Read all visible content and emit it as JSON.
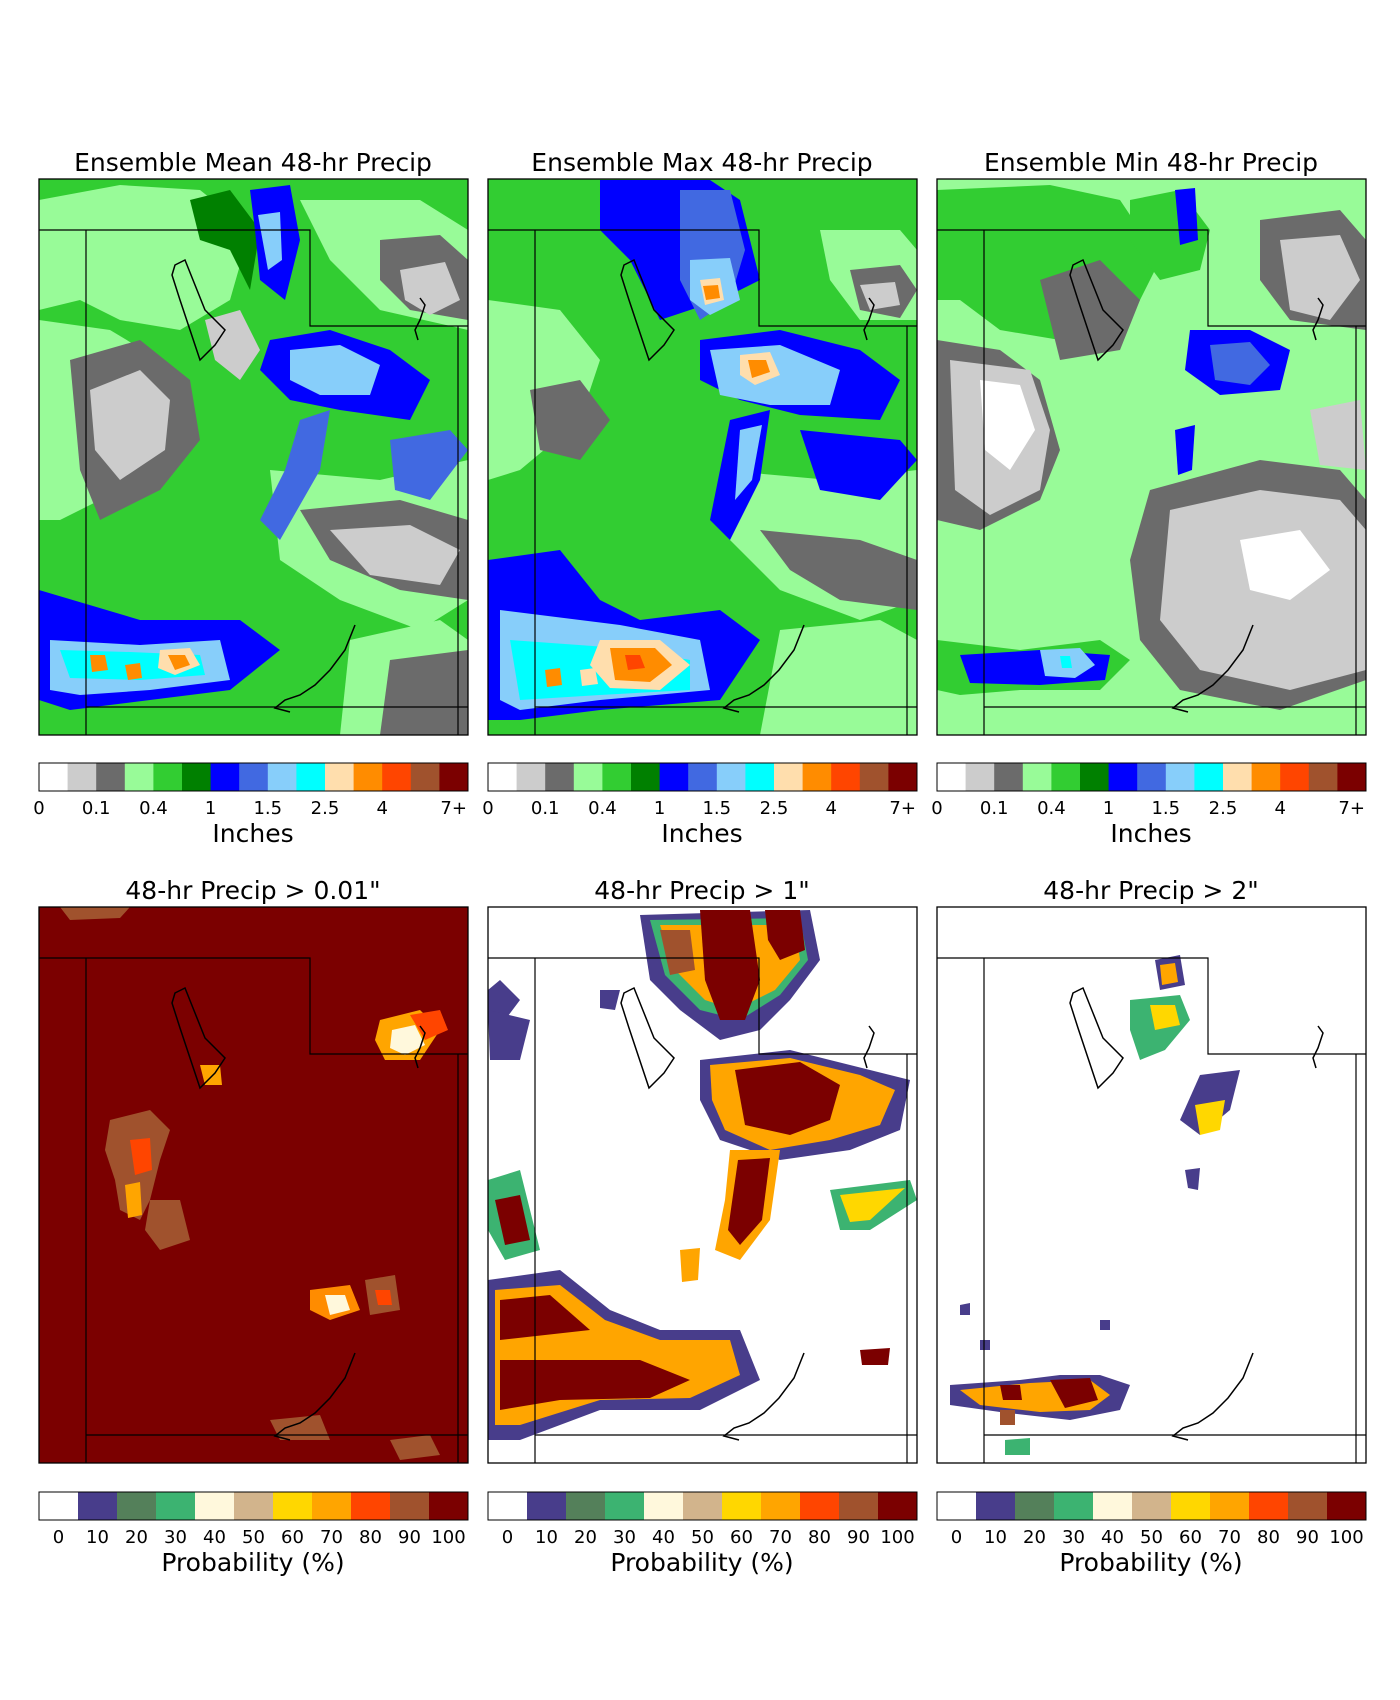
{
  "figure_panels": [
    {
      "id": "mean",
      "title": "Ensemble Mean 48-hr Precip",
      "kind": "precip",
      "field_summary": "Widespread light to moderate precipitation; heaviest band (2.5–4 in) across southwest; blue maxima over north-central mountains"
    },
    {
      "id": "max",
      "title": "Ensemble Max 48-hr Precip",
      "kind": "precip",
      "field_summary": "Higher totals than mean; 4+ in spots in northern mountains and southwest band"
    },
    {
      "id": "min",
      "title": "Ensemble Min 48-hr Precip",
      "kind": "precip",
      "field_summary": "Mostly 0–0.4 in with dry (white) patches in west-central region; isolated 1.5 in bands"
    },
    {
      "id": "p001",
      "title": "48-hr Precip > 0.01\"",
      "kind": "prob",
      "field_summary": "Near 100% probability everywhere with small 80–90% pockets"
    },
    {
      "id": "p1",
      "title": "48-hr Precip > 1\"",
      "kind": "prob",
      "field_summary": "High probabilities along northern mountains, central ridge, and southwest band; mostly 0% elsewhere"
    },
    {
      "id": "p2",
      "title": "48-hr Precip > 2\"",
      "kind": "prob",
      "field_summary": "Isolated areas; highest along southwest band"
    }
  ],
  "colorbars": {
    "precip": {
      "label": "Inches",
      "colors": [
        "#ffffff",
        "#cccccc",
        "#6b6b6b",
        "#98fb98",
        "#32cd32",
        "#008000",
        "#0000ff",
        "#4169e1",
        "#87cefa",
        "#00ffff",
        "#ffdead",
        "#ff8c00",
        "#ff4500",
        "#a0522d",
        "#7b0000"
      ],
      "ticks": [
        "0",
        "0.1",
        "0.4",
        "1",
        "1.5",
        "2.5",
        "4",
        "7+"
      ]
    },
    "prob": {
      "label": "Probability (%)",
      "colors": [
        "#ffffff",
        "#483d8b",
        "#54805a",
        "#3cb371",
        "#fff8dc",
        "#d2b48c",
        "#ffd700",
        "#ffa500",
        "#ff4500",
        "#a0522d",
        "#7b0000"
      ],
      "ticks": [
        "0",
        "10",
        "20",
        "30",
        "40",
        "50",
        "60",
        "70",
        "80",
        "90",
        "100"
      ]
    }
  }
}
